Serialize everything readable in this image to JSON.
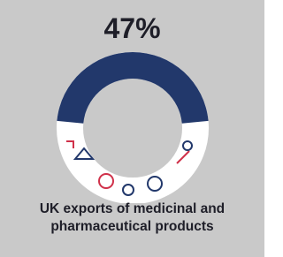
{
  "chart_data": {
    "type": "donut",
    "title": "UK exports of medicinal and pharmaceutical products",
    "values": [
      47
    ],
    "value_labels": [
      "47%"
    ],
    "color": "#22386b"
  }
}
